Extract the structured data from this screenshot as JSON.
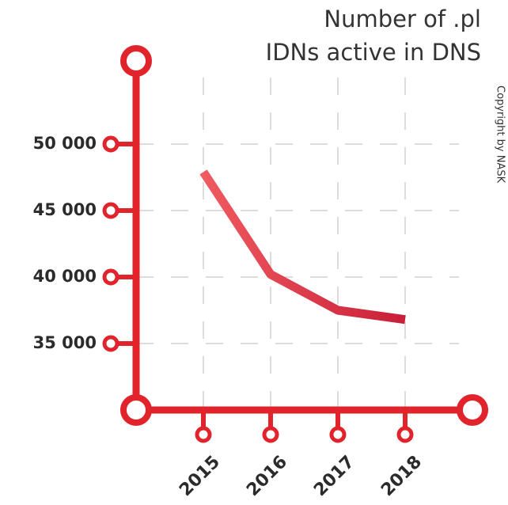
{
  "chart_data": {
    "type": "line",
    "title": [
      "Number of .pl",
      "IDNs active in DNS"
    ],
    "annotation": "Copyright by NASK",
    "categories": [
      "2015",
      "2016",
      "2017",
      "2018"
    ],
    "series": [
      {
        "name": "IDNs active in DNS",
        "color": "#d42a3a",
        "values": [
          47900,
          40200,
          37500,
          36800
        ]
      }
    ],
    "ylim": [
      30000,
      55000
    ],
    "yticks": [
      {
        "value": 35000,
        "label": "35 000"
      },
      {
        "value": 40000,
        "label": "40 000"
      },
      {
        "value": 45000,
        "label": "45 000"
      },
      {
        "value": 50000,
        "label": "50 000"
      }
    ],
    "grid": true
  }
}
